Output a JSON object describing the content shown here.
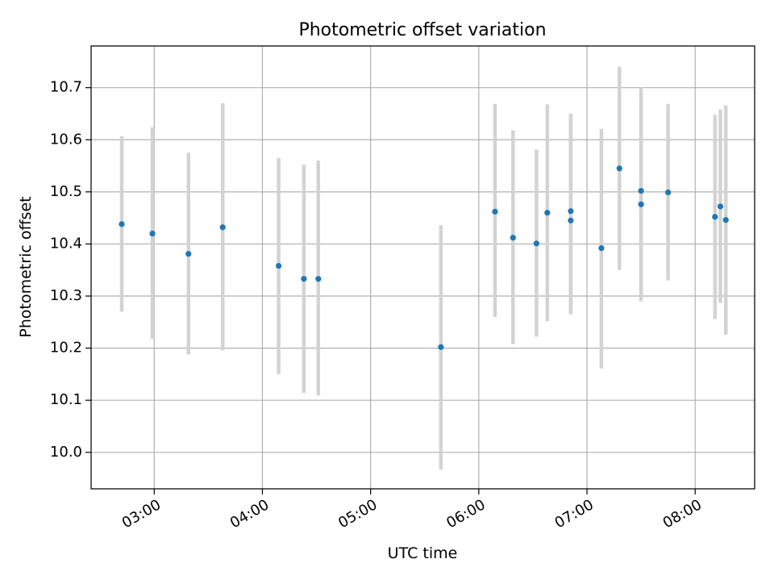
{
  "chart_data": {
    "type": "scatter",
    "title": "Photometric offset variation",
    "xlabel": "UTC time",
    "ylabel": "Photometric offset",
    "x_unit": "UTC time (HH:MM)",
    "xlim": [
      "02:25",
      "08:33"
    ],
    "ylim": [
      9.93,
      10.78
    ],
    "x_ticks": [
      "03:00",
      "04:00",
      "05:00",
      "06:00",
      "07:00",
      "08:00"
    ],
    "y_ticks": [
      10.0,
      10.1,
      10.2,
      10.3,
      10.4,
      10.5,
      10.6,
      10.7
    ],
    "grid": true,
    "legend": "none",
    "colors": {
      "point": "#1f77b4",
      "errorbar": "#d3d3d3",
      "grid": "#b0b0b0"
    },
    "points": [
      {
        "x": "02:42",
        "y": 10.438,
        "ylow": 10.27,
        "yhigh": 10.607
      },
      {
        "x": "02:59",
        "y": 10.42,
        "ylow": 10.218,
        "yhigh": 10.624
      },
      {
        "x": "03:19",
        "y": 10.381,
        "ylow": 10.188,
        "yhigh": 10.575
      },
      {
        "x": "03:38",
        "y": 10.432,
        "ylow": 10.196,
        "yhigh": 10.67
      },
      {
        "x": "04:09",
        "y": 10.358,
        "ylow": 10.15,
        "yhigh": 10.565
      },
      {
        "x": "04:23",
        "y": 10.333,
        "ylow": 10.114,
        "yhigh": 10.552
      },
      {
        "x": "04:31",
        "y": 10.333,
        "ylow": 10.109,
        "yhigh": 10.56
      },
      {
        "x": "05:39",
        "y": 10.202,
        "ylow": 9.967,
        "yhigh": 10.436
      },
      {
        "x": "06:09",
        "y": 10.462,
        "ylow": 10.26,
        "yhigh": 10.669
      },
      {
        "x": "06:19",
        "y": 10.412,
        "ylow": 10.208,
        "yhigh": 10.618
      },
      {
        "x": "06:32",
        "y": 10.401,
        "ylow": 10.222,
        "yhigh": 10.581
      },
      {
        "x": "06:38",
        "y": 10.46,
        "ylow": 10.252,
        "yhigh": 10.668
      },
      {
        "x": "06:51",
        "y": 10.463,
        "ylow": 10.265,
        "yhigh": 10.65
      },
      {
        "x": "06:51",
        "y": 10.445,
        "ylow": 10.27,
        "yhigh": 10.64
      },
      {
        "x": "07:08",
        "y": 10.392,
        "ylow": 10.161,
        "yhigh": 10.621
      },
      {
        "x": "07:18",
        "y": 10.545,
        "ylow": 10.35,
        "yhigh": 10.74
      },
      {
        "x": "07:30",
        "y": 10.502,
        "ylow": 10.3,
        "yhigh": 10.7
      },
      {
        "x": "07:30",
        "y": 10.476,
        "ylow": 10.29,
        "yhigh": 10.662
      },
      {
        "x": "07:45",
        "y": 10.499,
        "ylow": 10.33,
        "yhigh": 10.669
      },
      {
        "x": "08:11",
        "y": 10.452,
        "ylow": 10.256,
        "yhigh": 10.648
      },
      {
        "x": "08:14",
        "y": 10.472,
        "ylow": 10.287,
        "yhigh": 10.658
      },
      {
        "x": "08:17",
        "y": 10.446,
        "ylow": 10.226,
        "yhigh": 10.666
      }
    ]
  }
}
